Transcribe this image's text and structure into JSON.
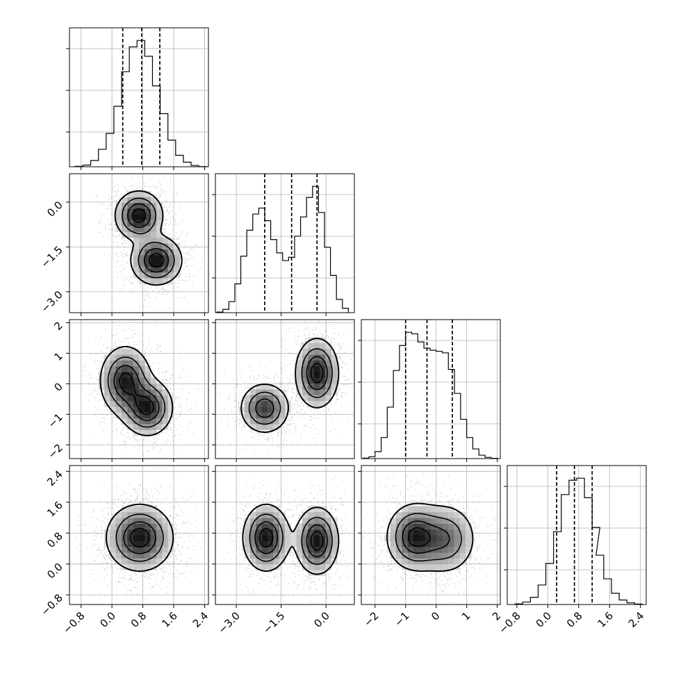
{
  "chart_data": {
    "type": "corner",
    "grid": true,
    "colors": {
      "hist": "#000000",
      "quantile": "#000000",
      "grid": "#b0b0b0",
      "points": "#808080",
      "density_dark": "#000000",
      "density_light": "#ffffff"
    },
    "params": [
      {
        "range": [
          -1.1,
          2.5
        ],
        "ticks": [
          -0.8,
          0.0,
          0.8,
          1.6,
          2.4
        ],
        "tick_labels": [
          "−0.8",
          "0.0",
          "0.8",
          "1.6",
          "2.4"
        ],
        "quantiles": [
          0.28,
          0.77,
          1.24
        ],
        "hist": {
          "bin_width": 0.2,
          "bins": [
            -0.85,
            -0.65,
            -0.45,
            -0.25,
            -0.05,
            0.15,
            0.35,
            0.55,
            0.75,
            0.95,
            1.15,
            1.35,
            1.55,
            1.75,
            1.95,
            2.15,
            2.35
          ],
          "counts": [
            2,
            8,
            30,
            84,
            160,
            290,
            456,
            575,
            606,
            530,
            388,
            255,
            128,
            55,
            22,
            6,
            1
          ]
        }
      },
      {
        "range": [
          -3.7,
          0.95
        ],
        "ticks": [
          -3.0,
          -1.5,
          0.0
        ],
        "tick_labels": [
          "−3.0",
          "−1.5",
          "0.0"
        ],
        "quantiles": [
          -2.05,
          -1.15,
          -0.3
        ],
        "hist": {
          "bin_width": 0.2,
          "bins": [
            -3.55,
            -3.35,
            -3.15,
            -2.95,
            -2.75,
            -2.55,
            -2.35,
            -2.15,
            -1.95,
            -1.75,
            -1.55,
            -1.35,
            -1.15,
            -0.95,
            -0.75,
            -0.55,
            -0.35,
            -0.15,
            0.05,
            0.25,
            0.45,
            0.65
          ],
          "counts": [
            3,
            15,
            50,
            130,
            255,
            372,
            445,
            472,
            415,
            330,
            270,
            235,
            250,
            345,
            432,
            520,
            570,
            452,
            295,
            168,
            60,
            20
          ]
        }
      },
      {
        "range": [
          -2.45,
          2.1
        ],
        "ticks": [
          -2,
          -1,
          0,
          1,
          2
        ],
        "tick_labels": [
          "−2",
          "−1",
          "0",
          "1",
          "2"
        ],
        "quantiles": [
          -1.0,
          -0.3,
          0.53
        ],
        "hist": {
          "bin_width": 0.2,
          "bins": [
            -2.3,
            -2.1,
            -1.9,
            -1.7,
            -1.5,
            -1.3,
            -1.1,
            -0.9,
            -0.7,
            -0.5,
            -0.3,
            -0.1,
            0.1,
            0.3,
            0.5,
            0.7,
            0.9,
            1.1,
            1.3,
            1.5,
            1.7,
            1.9
          ],
          "counts": [
            3,
            12,
            45,
            135,
            330,
            565,
            725,
            810,
            800,
            748,
            708,
            695,
            688,
            678,
            572,
            418,
            252,
            135,
            62,
            22,
            8,
            2
          ]
        }
      },
      {
        "range": [
          -1.05,
          2.55
        ],
        "ticks": [
          -0.8,
          0.0,
          0.8,
          1.6,
          2.4
        ],
        "tick_labels": [
          "−0.8",
          "0.0",
          "0.8",
          "1.6",
          "2.4"
        ],
        "quantiles": [
          0.23,
          0.69,
          1.15
        ],
        "hist": {
          "bin_width": 0.2,
          "bins": [
            -0.75,
            -0.55,
            -0.35,
            -0.15,
            0.05,
            0.25,
            0.45,
            0.65,
            0.85,
            1.05,
            1.25,
            1.35,
            1.55,
            1.75,
            1.95,
            2.15,
            2.35
          ],
          "counts": [
            3,
            12,
            35,
            95,
            200,
            355,
            535,
            605,
            615,
            520,
            375,
            240,
            125,
            55,
            22,
            8,
            2
          ]
        }
      }
    ],
    "pairs": [
      {
        "x": 0,
        "y": 1,
        "modes": [
          {
            "x": 0.7,
            "y": -0.45,
            "sx": 0.3,
            "sy": 0.4,
            "r": 0.0,
            "w": 0.5
          },
          {
            "x": 1.15,
            "y": -1.95,
            "sx": 0.32,
            "sy": 0.4,
            "r": 0.0,
            "w": 0.5
          }
        ]
      },
      {
        "x": 0,
        "y": 2,
        "modes": [
          {
            "x": 0.35,
            "y": 0.1,
            "sx": 0.32,
            "sy": 0.55,
            "r": 0.0,
            "w": 0.5
          },
          {
            "x": 0.92,
            "y": -0.78,
            "sx": 0.32,
            "sy": 0.45,
            "r": 0.0,
            "w": 0.5
          }
        ]
      },
      {
        "x": 1,
        "y": 2,
        "modes": [
          {
            "x": -2.05,
            "y": -0.8,
            "sx": 0.4,
            "sy": 0.4,
            "r": 0.0,
            "w": 0.45
          },
          {
            "x": -0.3,
            "y": 0.35,
            "sx": 0.35,
            "sy": 0.55,
            "r": 0.0,
            "w": 0.55
          }
        ]
      },
      {
        "x": 0,
        "y": 3,
        "modes": [
          {
            "x": 0.72,
            "y": 0.68,
            "sx": 0.42,
            "sy": 0.42,
            "r": 0.0,
            "w": 1.0
          }
        ]
      },
      {
        "x": 1,
        "y": 3,
        "modes": [
          {
            "x": -2.0,
            "y": 0.68,
            "sx": 0.38,
            "sy": 0.42,
            "r": 0.0,
            "w": 0.5
          },
          {
            "x": -0.3,
            "y": 0.6,
            "sx": 0.35,
            "sy": 0.42,
            "r": 0.0,
            "w": 0.5
          }
        ]
      },
      {
        "x": 2,
        "y": 3,
        "modes": [
          {
            "x": -0.7,
            "y": 0.7,
            "sx": 0.45,
            "sy": 0.42,
            "r": 0.0,
            "w": 0.6
          },
          {
            "x": 0.3,
            "y": 0.65,
            "sx": 0.5,
            "sy": 0.45,
            "r": 0.0,
            "w": 0.4
          }
        ]
      }
    ]
  }
}
